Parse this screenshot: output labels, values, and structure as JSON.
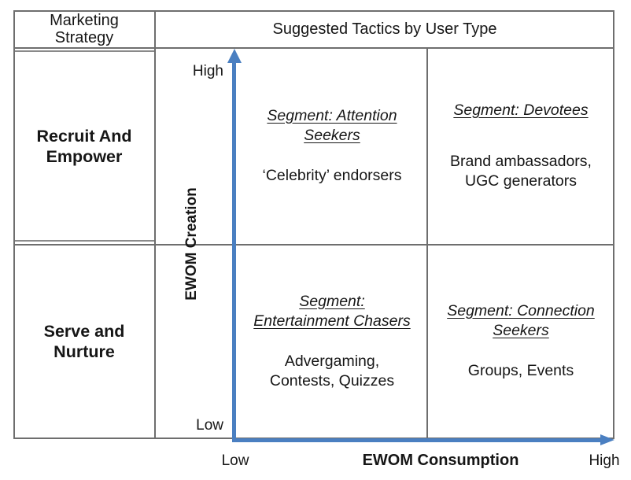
{
  "figure": {
    "header": {
      "strategy_col": "Marketing\nStrategy",
      "tactics_title": "Suggested Tactics by User Type"
    },
    "strategies": {
      "top": "Recruit And\nEmpower",
      "bottom": "Serve and\nNurture"
    },
    "y_axis": {
      "label": "EWOM Creation",
      "high": "High",
      "low": "Low"
    },
    "x_axis": {
      "label": "EWOM Consumption",
      "low": "Low",
      "high": "High"
    },
    "quadrants": {
      "attention_seekers": {
        "segment": "Segment: Attention\nSeekers",
        "tactics": "‘Celebrity’ endorsers"
      },
      "devotees": {
        "segment": "Segment: Devotees",
        "tactics": "Brand ambassadors,\nUGC generators"
      },
      "entertainment_chasers": {
        "segment": "Segment:\nEntertainment Chasers",
        "tactics": "Advergaming,\nContests, Quizzes"
      },
      "connection_seekers": {
        "segment": "Segment: Connection\nSeekers",
        "tactics": "Groups, Events"
      }
    },
    "colors": {
      "arrow_blue": "#4a7fc1",
      "grid_gray": "#6e6e6e",
      "text": "#161616"
    }
  }
}
